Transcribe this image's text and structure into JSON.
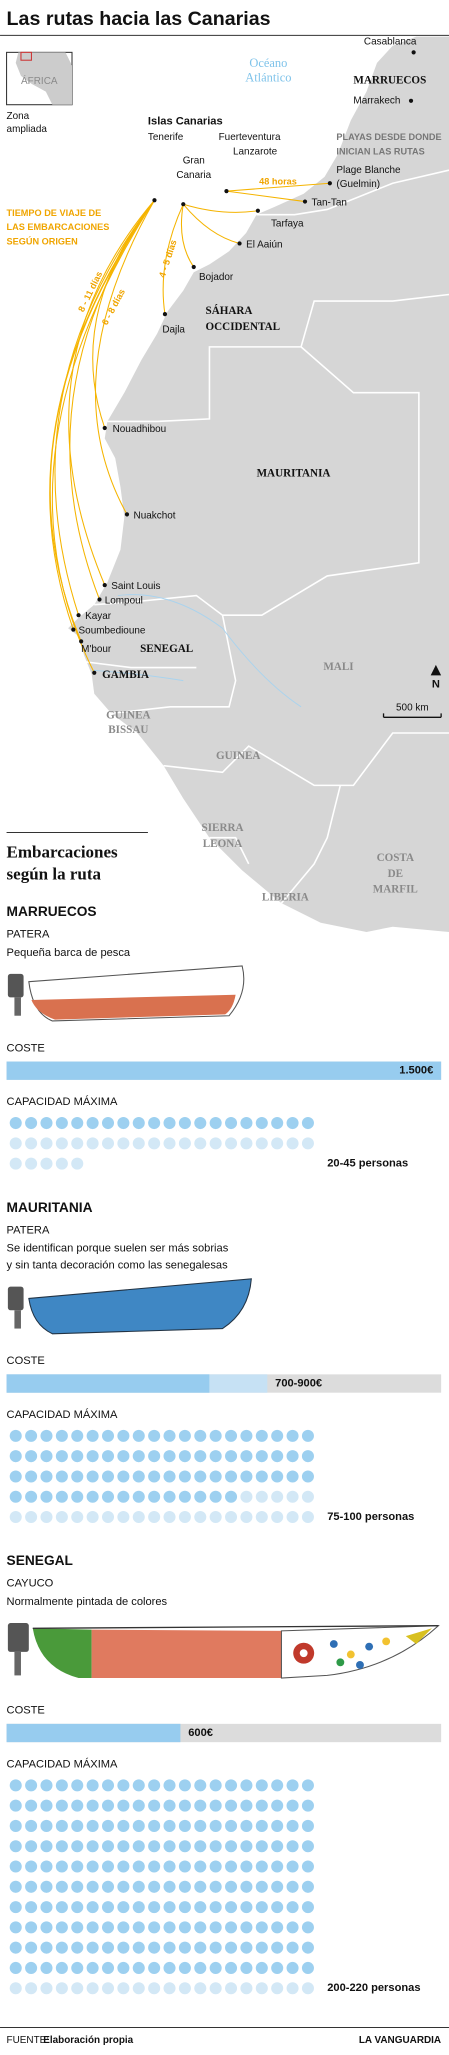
{
  "title": "Las rutas hacia las Canarias",
  "map": {
    "labels": [
      "ÁFRICA",
      "Zona",
      "ampliada",
      "Océano",
      "Atlántico",
      "Casablanca",
      "MARRUECOS",
      "Marrakech",
      "Islas Canarias",
      "Tenerife",
      "Gran",
      "Canaria",
      "Fuerteventura",
      "Lanzarote",
      "PLAYAS DESDE DONDE",
      "INICIAN LAS RUTAS",
      "Plage Blanche",
      "(Guelmin)",
      "Tan-Tan",
      "Tarfaya",
      "El Aaiún",
      "Bojador",
      "SÁHARA",
      "OCCIDENTAL",
      "Dajla",
      "Nouadhibou",
      "MAURITANIA",
      "Nuakchot",
      "Saint Louis",
      "Lompoul",
      "Kayar",
      "Soumbedioune",
      "M'bour",
      "SENEGAL",
      "GAMBIA",
      "MALI",
      "GUINEA",
      "BISSAU",
      "GUINEA",
      "SIERRA",
      "LEONA",
      "LIBERIA",
      "COSTA",
      "DE",
      "MARFIL",
      "N",
      "500 km"
    ]
  },
  "travel_times": {
    "legend": [
      "TIEMPO DE VIAJE DE",
      "LAS EMBARCACIONES",
      "SEGÚN ORIGEN"
    ],
    "labels": [
      "48 horas",
      "4 - 5 días",
      "6 - 8 días",
      "8 - 11 días"
    ]
  },
  "section_title": [
    "Embarcaciones",
    "según la ruta"
  ],
  "field_labels": {
    "cost": "COSTE",
    "capacity": "CAPACIDAD MÁXIMA"
  },
  "routes": [
    {
      "name": "MARRUECOS",
      "boat_type": "PATERA",
      "description": [
        "Pequeña barca de pesca"
      ],
      "cost": {
        "min": 1500,
        "max": 1500,
        "label": "1.500€"
      },
      "capacity": {
        "min": 20,
        "max": 45,
        "label": "20-45 personas"
      }
    },
    {
      "name": "MAURITANIA",
      "boat_type": "PATERA",
      "description": [
        "Se identifican porque suelen ser más sobrias",
        "y sin tanta decoración como las senegalesas"
      ],
      "cost": {
        "min": 700,
        "max": 900,
        "label": "700-900€"
      },
      "capacity": {
        "min": 75,
        "max": 100,
        "label": "75-100 personas"
      }
    },
    {
      "name": "SENEGAL",
      "boat_type": "CAYUCO",
      "description": [
        "Normalmente pintada de colores"
      ],
      "cost": {
        "min": 600,
        "max": 600,
        "label": "600€"
      },
      "capacity": {
        "min": 200,
        "max": 220,
        "label": "200-220 personas"
      }
    }
  ],
  "footer": {
    "source_prefix": "FUENTE:",
    "source": "Elaboración propia",
    "brand": "LA VANGUARDIA"
  }
}
